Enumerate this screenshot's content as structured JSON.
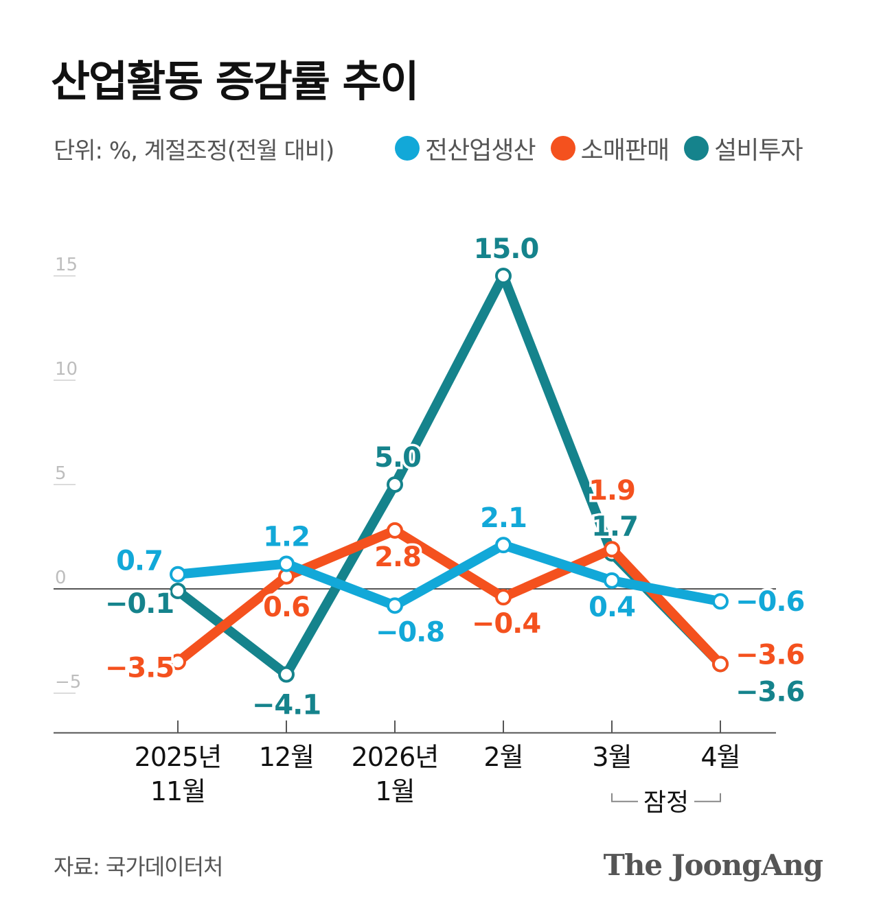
{
  "title": "산업활동 증감률 추이",
  "unit_label": "단위: %, 계절조정(전월 대비)",
  "legend": [
    {
      "label": "전산업생산",
      "color": "#12a8d8"
    },
    {
      "label": "소매판매",
      "color": "#f4511e"
    },
    {
      "label": "설비투자",
      "color": "#15838c"
    }
  ],
  "chart_data": {
    "type": "line",
    "x": [
      [
        "2025년",
        "11월"
      ],
      [
        "12월"
      ],
      [
        "2026년",
        "1월"
      ],
      [
        "2월"
      ],
      [
        "3월"
      ],
      [
        "4월"
      ]
    ],
    "ylim": [
      -6.9,
      15
    ],
    "yticks": [
      15,
      10,
      5,
      0,
      -5
    ],
    "ytick_labels": [
      "15",
      "10",
      "5",
      "0",
      "−5"
    ],
    "series": [
      {
        "name": "전산업생산",
        "color": "#12a8d8",
        "values": [
          0.7,
          1.2,
          -0.8,
          2.1,
          0.4,
          -0.6
        ],
        "labels": [
          "0.7",
          "1.2",
          "−0.8",
          "2.1",
          "0.4",
          "−0.6"
        ]
      },
      {
        "name": "소매판매",
        "color": "#f4511e",
        "values": [
          -3.5,
          0.6,
          2.8,
          -0.4,
          1.9,
          -3.6
        ],
        "labels": [
          "−3.5",
          "0.6",
          "2.8",
          "−0.4",
          "1.9",
          "−3.6"
        ]
      },
      {
        "name": "설비투자",
        "color": "#15838c",
        "values": [
          -0.1,
          -4.1,
          5.0,
          15.0,
          1.7,
          -3.6
        ],
        "labels": [
          "−0.1",
          "−4.1",
          "5.0",
          "15.0",
          "1.7",
          "−3.6"
        ]
      }
    ],
    "bracket_label": "잠정",
    "grid": false
  },
  "source": "자료: 국가데이터처",
  "logo": "The JoongAng"
}
